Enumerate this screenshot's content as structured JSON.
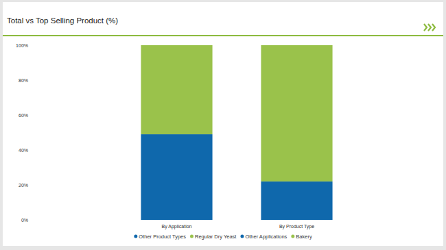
{
  "chart_data": {
    "type": "bar",
    "title": "Total vs Top Selling Product (%)",
    "categories": [
      "By Application",
      "By Product Type"
    ],
    "series": [
      {
        "name": "Other Product Types",
        "color": "#0f68ac",
        "values": [
          null,
          22
        ]
      },
      {
        "name": "Regular Dry Yeast",
        "color": "#9ac24b",
        "values": [
          null,
          78
        ]
      },
      {
        "name": "Other Applications",
        "color": "#0f68ac",
        "values": [
          49,
          null
        ]
      },
      {
        "name": "Bakery",
        "color": "#9ac24b",
        "values": [
          51,
          null
        ]
      }
    ],
    "stacked": true,
    "legend": "bottom",
    "ylim": [
      0,
      100
    ],
    "yticks": [
      {
        "value": 0,
        "label": "0%"
      },
      {
        "value": 20,
        "label": "20%"
      },
      {
        "value": 40,
        "label": "40%"
      },
      {
        "value": 60,
        "label": "60%"
      },
      {
        "value": 80,
        "label": "80%"
      },
      {
        "value": 100,
        "label": "100%"
      }
    ],
    "grid": false
  }
}
